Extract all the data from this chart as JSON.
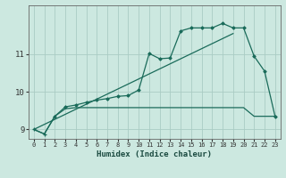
{
  "xlabel": "Humidex (Indice chaleur)",
  "bg_color": "#cce8e0",
  "grid_color": "#aaccC4",
  "line_color": "#1a6b5a",
  "xlim": [
    -0.5,
    23.5
  ],
  "ylim": [
    8.75,
    12.3
  ],
  "yticks": [
    9,
    10,
    11
  ],
  "xticks": [
    0,
    1,
    2,
    3,
    4,
    5,
    6,
    7,
    8,
    9,
    10,
    11,
    12,
    13,
    14,
    15,
    16,
    17,
    18,
    19,
    20,
    21,
    22,
    23
  ],
  "trend_x": [
    0,
    19
  ],
  "trend_y": [
    9.0,
    11.55
  ],
  "flat_x": [
    0,
    1,
    2,
    3,
    4,
    5,
    6,
    7,
    8,
    9,
    10,
    11,
    12,
    13,
    14,
    15,
    16,
    17,
    18,
    19,
    20,
    21,
    22,
    23
  ],
  "flat_y": [
    9.0,
    8.88,
    9.35,
    9.55,
    9.58,
    9.58,
    9.58,
    9.58,
    9.58,
    9.58,
    9.58,
    9.58,
    9.58,
    9.58,
    9.58,
    9.58,
    9.58,
    9.58,
    9.58,
    9.58,
    9.58,
    9.35,
    9.35,
    9.35
  ],
  "main_x": [
    0,
    1,
    2,
    3,
    4,
    5,
    6,
    7,
    8,
    9,
    10,
    11,
    12,
    13,
    14,
    15,
    16,
    17,
    18,
    19,
    20,
    21,
    22,
    23
  ],
  "main_y": [
    9.0,
    8.88,
    9.35,
    9.6,
    9.65,
    9.72,
    9.78,
    9.82,
    9.88,
    9.9,
    10.05,
    11.02,
    10.88,
    10.9,
    11.62,
    11.7,
    11.7,
    11.7,
    11.82,
    11.7,
    11.7,
    10.95,
    10.55,
    9.35
  ],
  "dot_x": [
    2,
    3,
    4,
    5,
    6,
    7,
    8,
    9,
    10,
    11,
    12,
    13,
    14,
    15,
    16,
    17,
    18,
    19,
    20,
    21,
    22,
    23
  ],
  "dot_y": [
    9.35,
    9.6,
    9.65,
    9.72,
    9.78,
    9.82,
    9.88,
    9.9,
    10.05,
    11.02,
    10.88,
    10.9,
    11.62,
    11.7,
    11.7,
    11.7,
    11.82,
    11.7,
    11.7,
    10.95,
    10.55,
    9.35
  ]
}
